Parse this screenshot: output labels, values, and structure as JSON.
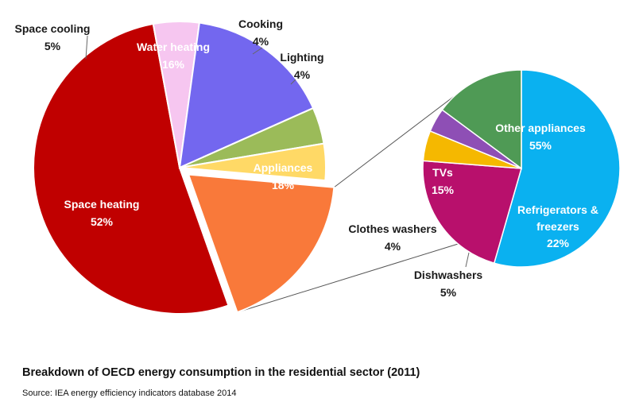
{
  "chart_data": [
    {
      "type": "pie",
      "categories": [
        "Space heating",
        "Space cooling",
        "Water heating",
        "Cooking",
        "Lighting",
        "Appliances"
      ],
      "values": [
        52,
        5,
        16,
        4,
        4,
        18
      ],
      "value_labels": [
        "52%",
        "5%",
        "16%",
        "4%",
        "4%",
        "18%"
      ],
      "colors": [
        "#c00000",
        "#f6c6f0",
        "#7367ef",
        "#9bbb59",
        "#ffd966",
        "#f9793a"
      ],
      "exploded": "Appliances"
    },
    {
      "type": "pie",
      "breakdown_of": "Appliances",
      "categories": [
        "Other appliances",
        "Refrigerators & freezers",
        "Dishwashers",
        "Clothes washers",
        "TVs"
      ],
      "values": [
        55,
        22,
        5,
        4,
        15
      ],
      "value_labels": [
        "55%",
        "22%",
        "5%",
        "4%",
        "15%"
      ],
      "colors": [
        "#0ab1f0",
        "#b8106c",
        "#f5b800",
        "#8e4fb5",
        "#4f9a55"
      ]
    }
  ],
  "caption": "Breakdown of OECD energy consumption in the residential sector (2011)",
  "source": "Source: IEA energy efficiency indicators database 2014"
}
